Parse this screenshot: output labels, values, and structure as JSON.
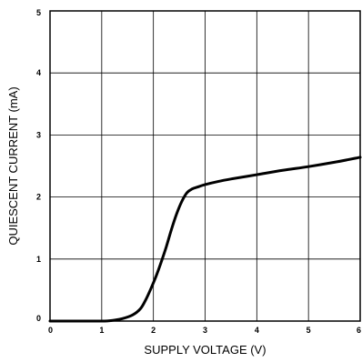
{
  "chart_data": {
    "type": "line",
    "title": "",
    "xlabel": "SUPPLY VOLTAGE (V)",
    "ylabel": "QUIESCENT CURRENT (mA)",
    "xlim": [
      0,
      6
    ],
    "ylim": [
      0,
      5
    ],
    "x_ticks": [
      "0",
      "1",
      "2",
      "3",
      "4",
      "5",
      "6"
    ],
    "y_ticks": [
      "0",
      "1",
      "2",
      "3",
      "4",
      "5"
    ],
    "grid": true,
    "legend": "none",
    "line_color": "#000000",
    "series": [
      {
        "x": [
          0,
          0.5,
          1.0,
          1.2,
          1.4,
          1.6,
          1.75,
          1.85,
          1.95,
          2.05,
          2.15,
          2.25,
          2.35,
          2.45,
          2.55,
          2.65,
          2.75,
          2.85,
          3.0,
          3.25,
          3.5,
          4.0,
          4.5,
          5.0,
          5.5,
          6.0
        ],
        "y": [
          0.0,
          0.0,
          0.0,
          0.01,
          0.04,
          0.1,
          0.2,
          0.34,
          0.52,
          0.72,
          0.95,
          1.2,
          1.48,
          1.73,
          1.93,
          2.07,
          2.13,
          2.16,
          2.2,
          2.25,
          2.29,
          2.36,
          2.43,
          2.49,
          2.56,
          2.64
        ]
      }
    ]
  }
}
